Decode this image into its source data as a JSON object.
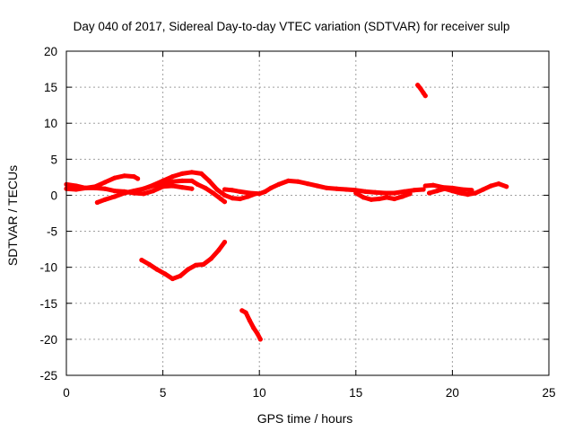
{
  "chart_data": {
    "type": "scatter",
    "title": "Day 040 of 2017, Sidereal Day-to-day VTEC variation (SDTVAR) for receiver sulp",
    "xlabel": "GPS time / hours",
    "ylabel": "SDTVAR / TECUs",
    "xlim": [
      0,
      25
    ],
    "ylim": [
      -25,
      20
    ],
    "xticks": [
      0,
      5,
      10,
      15,
      20,
      25
    ],
    "yticks": [
      -25,
      -20,
      -15,
      -10,
      -5,
      0,
      5,
      10,
      15,
      20
    ],
    "xtick_labels": [
      "0",
      "5",
      "10",
      "15",
      "20",
      "25"
    ],
    "ytick_labels": [
      "-25",
      "-20",
      "-15",
      "-10",
      "-5",
      "0",
      "5",
      "10",
      "15",
      "20"
    ],
    "grid": true,
    "marker_color": "#ff0000",
    "series": [
      {
        "name": "arc-upper-band-early",
        "points": [
          [
            0.0,
            1.5
          ],
          [
            0.5,
            1.3
          ],
          [
            1.0,
            1.0
          ],
          [
            1.5,
            1.2
          ],
          [
            2.0,
            1.8
          ],
          [
            2.5,
            2.4
          ],
          [
            3.0,
            2.7
          ],
          [
            3.5,
            2.6
          ],
          [
            3.7,
            2.3
          ]
        ]
      },
      {
        "name": "arc-lower-band-early",
        "points": [
          [
            0.0,
            0.9
          ],
          [
            0.5,
            0.8
          ],
          [
            1.0,
            1.0
          ],
          [
            1.5,
            1.0
          ],
          [
            2.0,
            0.9
          ],
          [
            2.5,
            0.6
          ],
          [
            3.0,
            0.5
          ],
          [
            3.5,
            0.3
          ],
          [
            4.0,
            0.2
          ],
          [
            4.5,
            0.6
          ],
          [
            5.0,
            1.2
          ],
          [
            5.5,
            1.3
          ],
          [
            6.0,
            1.1
          ],
          [
            6.5,
            0.9
          ]
        ]
      },
      {
        "name": "arc-rising",
        "points": [
          [
            1.6,
            -1.0
          ],
          [
            2.0,
            -0.6
          ],
          [
            2.5,
            -0.2
          ],
          [
            3.0,
            0.3
          ],
          [
            3.5,
            0.6
          ],
          [
            4.0,
            0.9
          ],
          [
            4.5,
            1.3
          ],
          [
            5.0,
            1.6
          ],
          [
            5.5,
            1.9
          ],
          [
            6.0,
            2.0
          ],
          [
            6.5,
            2.0
          ],
          [
            6.8,
            1.5
          ],
          [
            7.2,
            1.0
          ],
          [
            7.6,
            0.3
          ],
          [
            8.0,
            -0.5
          ],
          [
            8.2,
            -0.9
          ]
        ]
      },
      {
        "name": "arc-hump",
        "points": [
          [
            4.0,
            0.9
          ],
          [
            4.5,
            1.4
          ],
          [
            5.0,
            2.0
          ],
          [
            5.5,
            2.6
          ],
          [
            6.0,
            3.0
          ],
          [
            6.5,
            3.2
          ],
          [
            7.0,
            3.0
          ],
          [
            7.4,
            2.0
          ],
          [
            7.8,
            0.8
          ],
          [
            8.2,
            0.0
          ],
          [
            8.6,
            -0.4
          ],
          [
            9.0,
            -0.5
          ],
          [
            9.4,
            -0.2
          ],
          [
            9.8,
            0.2
          ]
        ]
      },
      {
        "name": "arc-mid-day",
        "points": [
          [
            8.2,
            0.8
          ],
          [
            8.6,
            0.7
          ],
          [
            9.0,
            0.5
          ],
          [
            9.5,
            0.3
          ],
          [
            10.0,
            0.2
          ],
          [
            10.3,
            0.5
          ],
          [
            10.6,
            1.0
          ],
          [
            11.0,
            1.5
          ],
          [
            11.5,
            2.0
          ],
          [
            12.0,
            1.9
          ],
          [
            12.5,
            1.6
          ],
          [
            13.0,
            1.3
          ],
          [
            13.5,
            1.0
          ],
          [
            14.0,
            0.9
          ],
          [
            14.5,
            0.8
          ],
          [
            15.0,
            0.7
          ],
          [
            15.5,
            0.5
          ],
          [
            16.0,
            0.4
          ],
          [
            16.5,
            0.3
          ],
          [
            17.0,
            0.3
          ],
          [
            17.5,
            0.5
          ],
          [
            18.0,
            0.7
          ],
          [
            18.5,
            0.8
          ]
        ]
      },
      {
        "name": "arc-scattered-lower",
        "points": [
          [
            15.0,
            0.3
          ],
          [
            15.4,
            -0.3
          ],
          [
            15.8,
            -0.6
          ],
          [
            16.2,
            -0.5
          ],
          [
            16.6,
            -0.3
          ],
          [
            17.0,
            -0.5
          ],
          [
            17.4,
            -0.2
          ],
          [
            17.8,
            0.2
          ]
        ]
      },
      {
        "name": "arc-late-day",
        "points": [
          [
            18.8,
            0.3
          ],
          [
            19.2,
            0.6
          ],
          [
            19.6,
            0.9
          ],
          [
            20.0,
            0.6
          ],
          [
            20.4,
            0.3
          ],
          [
            20.8,
            0.1
          ],
          [
            21.2,
            0.3
          ],
          [
            21.6,
            0.8
          ],
          [
            22.0,
            1.3
          ],
          [
            22.4,
            1.6
          ],
          [
            22.8,
            1.2
          ]
        ]
      },
      {
        "name": "arc-late-day-upper",
        "points": [
          [
            18.6,
            1.3
          ],
          [
            19.0,
            1.4
          ],
          [
            19.5,
            1.1
          ],
          [
            20.0,
            1.0
          ],
          [
            20.5,
            0.8
          ],
          [
            21.0,
            0.7
          ]
        ]
      },
      {
        "name": "arc-negative-dip",
        "points": [
          [
            3.9,
            -9.0
          ],
          [
            4.3,
            -9.6
          ],
          [
            4.7,
            -10.3
          ],
          [
            5.1,
            -10.9
          ],
          [
            5.5,
            -11.6
          ],
          [
            5.9,
            -11.2
          ],
          [
            6.3,
            -10.3
          ],
          [
            6.7,
            -9.7
          ],
          [
            7.1,
            -9.6
          ],
          [
            7.5,
            -8.8
          ],
          [
            7.9,
            -7.6
          ],
          [
            8.2,
            -6.5
          ]
        ]
      },
      {
        "name": "arc-steep-descent",
        "points": [
          [
            9.1,
            -16.0
          ],
          [
            9.3,
            -16.3
          ],
          [
            9.5,
            -17.4
          ],
          [
            9.7,
            -18.4
          ],
          [
            9.9,
            -19.2
          ],
          [
            10.05,
            -20.0
          ]
        ]
      },
      {
        "name": "arc-high-short",
        "points": [
          [
            18.2,
            15.3
          ],
          [
            18.35,
            14.8
          ],
          [
            18.5,
            14.2
          ],
          [
            18.6,
            13.8
          ]
        ]
      }
    ]
  }
}
